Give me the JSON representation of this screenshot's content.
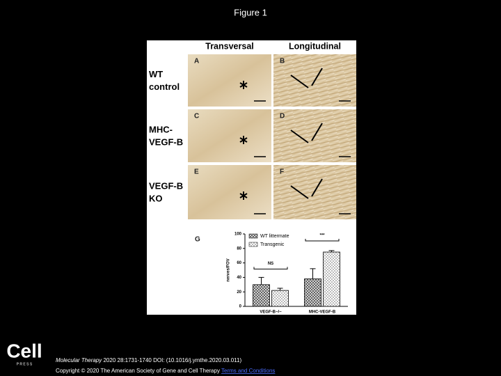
{
  "header": {
    "title": "Figure 1"
  },
  "figure": {
    "column_labels": [
      "Transversal",
      "Longitudinal"
    ],
    "row_labels": [
      [
        "WT",
        "control"
      ],
      [
        "MHC-",
        "VEGF-B"
      ],
      [
        "VEGF-B",
        "KO"
      ]
    ],
    "panel_letters": [
      "A",
      "B",
      "C",
      "D",
      "E",
      "F"
    ],
    "chart_letter": "G"
  },
  "chart_data": {
    "type": "bar",
    "ylabel": "nerves/FOV",
    "categories": [
      "VEGF-B−/−",
      "MHC-VEGF-B"
    ],
    "series": [
      {
        "name": "WT littermate",
        "color": "#555555",
        "values": [
          30,
          38
        ],
        "errors": [
          10,
          14
        ]
      },
      {
        "name": "Transgenic",
        "color": "#bbbbbb",
        "values": [
          22,
          75
        ],
        "errors": [
          3,
          2
        ]
      }
    ],
    "ylim": [
      0,
      100
    ],
    "yticks": [
      0,
      20,
      40,
      60,
      80,
      100
    ],
    "annotations": [
      "NS",
      "***"
    ]
  },
  "footer": {
    "citation_journal": "Molecular Therapy",
    "citation": "2020 28:1731-1740 DOI: (10.1016/j.ymthe.2020.03.011)",
    "copyright": "Copyright © 2020 The American Society of Gene and Cell Therapy",
    "link": "Terms and Conditions",
    "logo": "Cell",
    "logo_sub": "P R E S S"
  }
}
